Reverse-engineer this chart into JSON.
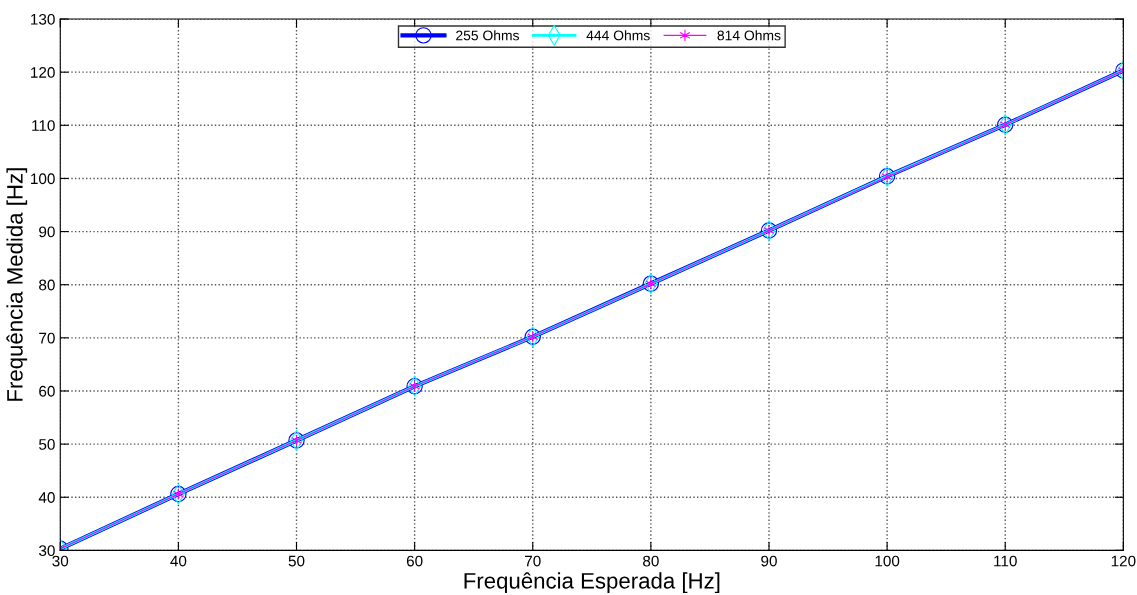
{
  "chart_data": {
    "type": "line",
    "xlabel": "Frequência Esperada [Hz]",
    "ylabel": "Frequência Medida [Hz]",
    "x": [
      30,
      40,
      50,
      60,
      70,
      80,
      90,
      100,
      110,
      120
    ],
    "series": [
      {
        "name": "255 Ohms",
        "color": "#0000ff",
        "marker": "circle",
        "values": [
          30.3,
          40.6,
          50.7,
          60.9,
          70.2,
          80.2,
          90.2,
          100.4,
          110.1,
          120.3
        ]
      },
      {
        "name": "444 Ohms",
        "color": "#00ffff",
        "marker": "diamond",
        "values": [
          30.3,
          40.6,
          50.7,
          60.9,
          70.2,
          80.2,
          90.2,
          100.4,
          110.1,
          120.3
        ]
      },
      {
        "name": "814 Ohms",
        "color": "#ff00ff",
        "marker": "cross",
        "values": [
          30.3,
          40.6,
          50.7,
          60.9,
          70.2,
          80.2,
          90.2,
          100.3,
          110.1,
          120.3
        ]
      }
    ],
    "xlim": [
      30,
      120
    ],
    "xticks": [
      30,
      40,
      50,
      60,
      70,
      80,
      90,
      100,
      110,
      120
    ],
    "ylim": [
      30,
      130
    ],
    "yticks": [
      30,
      40,
      50,
      60,
      70,
      80,
      90,
      100,
      110,
      120,
      130
    ],
    "grid": true,
    "legend": "top",
    "line_style": "solid"
  }
}
